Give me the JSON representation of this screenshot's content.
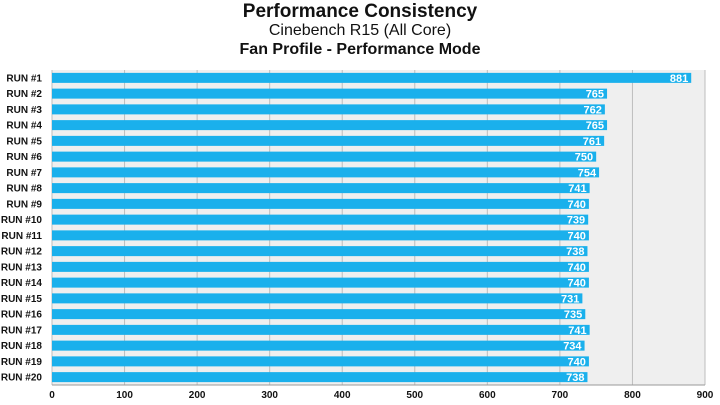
{
  "chart_data": {
    "type": "bar",
    "orientation": "horizontal",
    "title": "Performance Consistency",
    "subtitle_1": "Cinebench R15 (All Core)",
    "subtitle_2": "Fan Profile - Performance Mode",
    "categories": [
      "RUN #1",
      "RUN #2",
      "RUN #3",
      "RUN #4",
      "RUN #5",
      "RUN #6",
      "RUN #7",
      "RUN #8",
      "RUN #9",
      "RUN #10",
      "RUN #11",
      "RUN #12",
      "RUN #13",
      "RUN #14",
      "RUN #15",
      "RUN #16",
      "RUN #17",
      "RUN #18",
      "RUN #19",
      "RUN #20"
    ],
    "values": [
      881,
      765,
      762,
      765,
      761,
      750,
      754,
      741,
      740,
      739,
      740,
      738,
      740,
      740,
      731,
      735,
      741,
      734,
      740,
      738
    ],
    "xlim": [
      0,
      900
    ],
    "xticks": [
      0,
      100,
      200,
      300,
      400,
      500,
      600,
      700,
      800,
      900
    ],
    "grid": "vertical",
    "legend": "none",
    "colors": {
      "bar": "#1ab0ec",
      "background": "#efefef",
      "grid": "#bdbdbd",
      "text": "#111111",
      "label_text": "#ffffff"
    }
  }
}
